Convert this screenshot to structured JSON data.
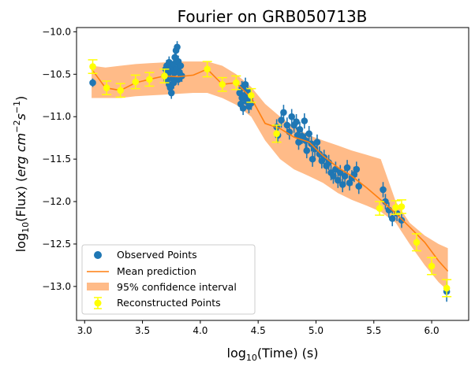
{
  "chart_data": {
    "type": "scatter",
    "title": "Fourier on GRB050713B",
    "xlabel": "log10(Time) (s)",
    "ylabel": "log10(Flux) (erg cm^-2 s^-1)",
    "xlim": [
      2.93,
      6.32
    ],
    "ylim": [
      -13.4,
      -9.95
    ],
    "xticks": [
      3.0,
      3.5,
      4.0,
      4.5,
      5.0,
      5.5,
      6.0
    ],
    "yticks": [
      -10.0,
      -10.5,
      -11.0,
      -11.5,
      -12.0,
      -12.5,
      -13.0
    ],
    "xtick_labels": [
      "3.0",
      "3.5",
      "4.0",
      "4.5",
      "5.0",
      "5.5",
      "6.0"
    ],
    "ytick_labels": [
      "−10.0",
      "−10.5",
      "−11.0",
      "−11.5",
      "−12.0",
      "−12.5",
      "−13.0"
    ],
    "grid": false,
    "legend": {
      "placement": "lower-left",
      "entries": [
        "Observed Points",
        "Mean prediction",
        "95% confidence interval",
        "Reconstructed Points"
      ]
    },
    "colors": {
      "observed": "#1f77b4",
      "mean": "#ff7f0e",
      "confidence": "#ffbb88",
      "reconstructed": "#ffff00"
    },
    "series": [
      {
        "name": "Observed Points",
        "kind": "scatter_errorbar",
        "points": [
          [
            3.07,
            -10.6,
            0.05
          ],
          [
            3.69,
            -10.52,
            0.07
          ],
          [
            3.7,
            -10.44,
            0.07
          ],
          [
            3.71,
            -10.57,
            0.07
          ],
          [
            3.71,
            -10.4,
            0.07
          ],
          [
            3.72,
            -10.5,
            0.07
          ],
          [
            3.73,
            -10.36,
            0.07
          ],
          [
            3.73,
            -10.62,
            0.07
          ],
          [
            3.74,
            -10.47,
            0.07
          ],
          [
            3.74,
            -10.66,
            0.07
          ],
          [
            3.75,
            -10.42,
            0.07
          ],
          [
            3.75,
            -10.72,
            0.07
          ],
          [
            3.76,
            -10.55,
            0.07
          ],
          [
            3.77,
            -10.38,
            0.07
          ],
          [
            3.77,
            -10.6,
            0.07
          ],
          [
            3.78,
            -10.3,
            0.07
          ],
          [
            3.78,
            -10.48,
            0.07
          ],
          [
            3.79,
            -10.22,
            0.07
          ],
          [
            3.8,
            -10.18,
            0.07
          ],
          [
            3.8,
            -10.44,
            0.07
          ],
          [
            3.81,
            -10.35,
            0.07
          ],
          [
            3.81,
            -10.56,
            0.07
          ],
          [
            3.82,
            -10.48,
            0.07
          ],
          [
            3.83,
            -10.4,
            0.07
          ],
          [
            3.84,
            -10.52,
            0.07
          ],
          [
            4.34,
            -10.72,
            0.08
          ],
          [
            4.35,
            -10.85,
            0.08
          ],
          [
            4.36,
            -10.78,
            0.08
          ],
          [
            4.36,
            -10.66,
            0.08
          ],
          [
            4.37,
            -10.9,
            0.08
          ],
          [
            4.38,
            -10.75,
            0.08
          ],
          [
            4.39,
            -10.62,
            0.08
          ],
          [
            4.4,
            -10.82,
            0.08
          ],
          [
            4.41,
            -10.7,
            0.08
          ],
          [
            4.42,
            -10.88,
            0.08
          ],
          [
            4.43,
            -10.78,
            0.08
          ],
          [
            4.44,
            -10.84,
            0.08
          ],
          [
            4.66,
            -11.12,
            0.09
          ],
          [
            4.67,
            -11.22,
            0.09
          ],
          [
            4.7,
            -11.04,
            0.09
          ],
          [
            4.72,
            -10.95,
            0.09
          ],
          [
            4.75,
            -11.1,
            0.09
          ],
          [
            4.77,
            -11.18,
            0.09
          ],
          [
            4.79,
            -11.0,
            0.09
          ],
          [
            4.81,
            -11.1,
            0.09
          ],
          [
            4.83,
            -11.06,
            0.09
          ],
          [
            4.84,
            -11.22,
            0.09
          ],
          [
            4.85,
            -11.3,
            0.09
          ],
          [
            4.86,
            -11.15,
            0.09
          ],
          [
            4.88,
            -11.23,
            0.09
          ],
          [
            4.9,
            -11.05,
            0.09
          ],
          [
            4.91,
            -11.28,
            0.09
          ],
          [
            4.92,
            -11.4,
            0.09
          ],
          [
            4.94,
            -11.2,
            0.09
          ],
          [
            4.96,
            -11.32,
            0.09
          ],
          [
            4.97,
            -11.5,
            0.09
          ],
          [
            4.99,
            -11.38,
            0.09
          ],
          [
            5.01,
            -11.3,
            0.09
          ],
          [
            5.03,
            -11.44,
            0.09
          ],
          [
            5.05,
            -11.52,
            0.09
          ],
          [
            5.07,
            -11.48,
            0.09
          ],
          [
            5.09,
            -11.58,
            0.09
          ],
          [
            5.11,
            -11.54,
            0.09
          ],
          [
            5.13,
            -11.66,
            0.09
          ],
          [
            5.15,
            -11.7,
            0.09
          ],
          [
            5.17,
            -11.62,
            0.09
          ],
          [
            5.19,
            -11.75,
            0.09
          ],
          [
            5.21,
            -11.66,
            0.09
          ],
          [
            5.23,
            -11.8,
            0.09
          ],
          [
            5.25,
            -11.7,
            0.09
          ],
          [
            5.27,
            -11.6,
            0.09
          ],
          [
            5.29,
            -11.78,
            0.09
          ],
          [
            5.31,
            -11.72,
            0.09
          ],
          [
            5.33,
            -11.68,
            0.09
          ],
          [
            5.35,
            -11.62,
            0.09
          ],
          [
            5.37,
            -11.82,
            0.09
          ],
          [
            5.58,
            -11.86,
            0.09
          ],
          [
            5.6,
            -12.0,
            0.09
          ],
          [
            5.63,
            -12.1,
            0.09
          ],
          [
            5.66,
            -12.2,
            0.09
          ],
          [
            5.7,
            -12.14,
            0.09
          ],
          [
            5.74,
            -12.22,
            0.09
          ],
          [
            6.13,
            -13.06,
            0.12
          ]
        ]
      },
      {
        "name": "Mean prediction",
        "kind": "line",
        "x": [
          3.06,
          3.18,
          3.31,
          3.44,
          3.56,
          3.69,
          3.81,
          3.94,
          4.06,
          4.19,
          4.31,
          4.44,
          4.56,
          4.69,
          4.81,
          4.94,
          5.06,
          5.19,
          5.31,
          5.44,
          5.56,
          5.69,
          5.81,
          5.94,
          6.06,
          6.14
        ],
        "y": [
          -10.44,
          -10.66,
          -10.69,
          -10.6,
          -10.56,
          -10.52,
          -10.53,
          -10.51,
          -10.44,
          -10.62,
          -10.6,
          -10.78,
          -11.08,
          -11.14,
          -11.24,
          -11.3,
          -11.46,
          -11.6,
          -11.7,
          -11.84,
          -11.98,
          -12.14,
          -12.3,
          -12.48,
          -12.7,
          -12.82
        ]
      },
      {
        "name": "95% confidence interval",
        "kind": "band",
        "x": [
          3.06,
          3.18,
          3.31,
          3.44,
          3.56,
          3.69,
          3.81,
          3.94,
          4.06,
          4.19,
          4.31,
          4.44,
          4.56,
          4.69,
          4.81,
          4.94,
          5.06,
          5.19,
          5.31,
          5.44,
          5.56,
          5.69,
          5.81,
          5.94,
          6.06,
          6.14
        ],
        "upper": [
          -10.4,
          -10.42,
          -10.4,
          -10.38,
          -10.37,
          -10.36,
          -10.35,
          -10.35,
          -10.35,
          -10.4,
          -10.5,
          -10.65,
          -10.85,
          -11.0,
          -11.12,
          -11.22,
          -11.28,
          -11.34,
          -11.4,
          -11.45,
          -11.5,
          -12.0,
          -12.25,
          -12.4,
          -12.5,
          -12.55
        ],
        "lower": [
          -10.78,
          -10.78,
          -10.78,
          -10.76,
          -10.75,
          -10.74,
          -10.73,
          -10.72,
          -10.72,
          -10.78,
          -10.86,
          -11.0,
          -11.28,
          -11.5,
          -11.62,
          -11.7,
          -11.78,
          -11.9,
          -11.98,
          -12.05,
          -12.12,
          -12.25,
          -12.5,
          -12.75,
          -12.95,
          -13.05
        ]
      },
      {
        "name": "Reconstructed Points",
        "kind": "scatter_errorbar",
        "points": [
          [
            3.07,
            -10.41,
            0.08
          ],
          [
            3.19,
            -10.66,
            0.08
          ],
          [
            3.31,
            -10.69,
            0.08
          ],
          [
            3.44,
            -10.59,
            0.08
          ],
          [
            3.56,
            -10.56,
            0.08
          ],
          [
            3.69,
            -10.52,
            0.08
          ],
          [
            4.06,
            -10.44,
            0.09
          ],
          [
            4.19,
            -10.62,
            0.08
          ],
          [
            4.31,
            -10.6,
            0.08
          ],
          [
            4.44,
            -10.75,
            0.08
          ],
          [
            4.66,
            -11.2,
            0.1
          ],
          [
            5.55,
            -12.08,
            0.08
          ],
          [
            5.69,
            -12.07,
            0.08
          ],
          [
            5.74,
            -12.06,
            0.08
          ],
          [
            5.87,
            -12.48,
            0.1
          ],
          [
            6.0,
            -12.76,
            0.1
          ],
          [
            6.13,
            -13.02,
            0.1
          ]
        ]
      }
    ]
  }
}
